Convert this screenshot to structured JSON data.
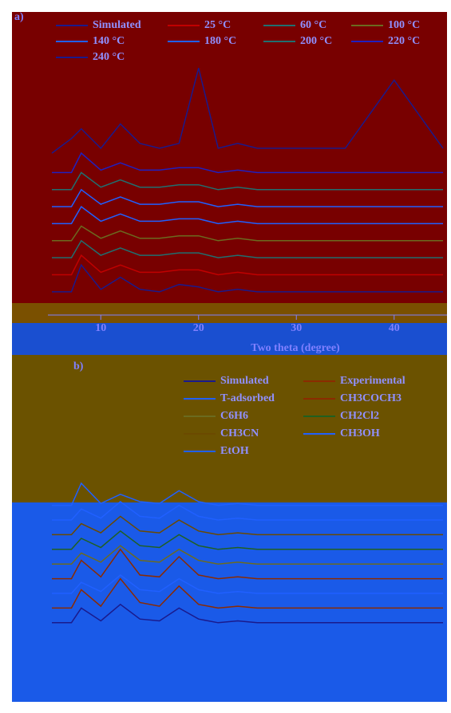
{
  "chart_data": [
    {
      "type": "line",
      "panel_label": "a)",
      "xlabel": "Two theta (degree)",
      "xlim": [
        5,
        45
      ],
      "xticks": [
        10,
        20,
        30,
        40
      ],
      "ylim": [
        0,
        100
      ],
      "x": [
        5,
        7,
        8,
        10,
        12,
        14,
        16,
        18,
        20,
        22,
        24,
        26,
        28,
        30,
        35,
        40,
        45
      ],
      "series": [
        {
          "name": "Simulated",
          "color": "#1a1a8c",
          "values": [
            3,
            3,
            14,
            4,
            9,
            4,
            3,
            6,
            5,
            3,
            4,
            3,
            3,
            3,
            3,
            3,
            3
          ]
        },
        {
          "name": "25 °C",
          "color": "#c00000",
          "values": [
            10,
            10,
            18,
            11,
            14,
            11,
            11,
            12,
            12,
            10,
            11,
            10,
            10,
            10,
            10,
            10,
            10
          ]
        },
        {
          "name": "60 °C",
          "color": "#207070",
          "values": [
            17,
            17,
            24,
            18,
            21,
            18,
            18,
            19,
            19,
            17,
            18,
            17,
            17,
            17,
            17,
            17,
            17
          ]
        },
        {
          "name": "100 °C",
          "color": "#6b6b20",
          "values": [
            24,
            24,
            30,
            25,
            28,
            25,
            25,
            26,
            26,
            24,
            25,
            24,
            24,
            24,
            24,
            24,
            24
          ]
        },
        {
          "name": "140 °C",
          "color": "#2060ff",
          "values": [
            31,
            31,
            38,
            32,
            35,
            32,
            32,
            33,
            33,
            31,
            32,
            31,
            31,
            31,
            31,
            31,
            31
          ]
        },
        {
          "name": "180 °C",
          "color": "#2060ff",
          "values": [
            38,
            38,
            45,
            39,
            42,
            39,
            39,
            40,
            40,
            38,
            39,
            38,
            38,
            38,
            38,
            38,
            38
          ]
        },
        {
          "name": "200 °C",
          "color": "#207070",
          "values": [
            45,
            45,
            52,
            46,
            49,
            46,
            46,
            47,
            47,
            45,
            46,
            45,
            45,
            45,
            45,
            45,
            45
          ]
        },
        {
          "name": "220 °C",
          "color": "#2020c0",
          "values": [
            52,
            52,
            60,
            53,
            56,
            53,
            53,
            54,
            54,
            52,
            53,
            52,
            52,
            52,
            52,
            52,
            52
          ]
        },
        {
          "name": "240 °C",
          "color": "#1a1a8c",
          "values": [
            60,
            66,
            70,
            62,
            72,
            64,
            62,
            64,
            95,
            62,
            64,
            62,
            62,
            62,
            62,
            90,
            62
          ]
        }
      ]
    },
    {
      "type": "line",
      "panel_label": "b)",
      "xlim": [
        5,
        45
      ],
      "ylim": [
        0,
        100
      ],
      "x": [
        5,
        7,
        8,
        10,
        12,
        14,
        16,
        18,
        20,
        22,
        24,
        26,
        28,
        30,
        35,
        40,
        45
      ],
      "series": [
        {
          "name": "Simulated",
          "color": "#1a1a8c",
          "values": [
            4,
            4,
            12,
            5,
            14,
            6,
            5,
            12,
            6,
            4,
            5,
            4,
            4,
            4,
            4,
            4,
            4
          ]
        },
        {
          "name": "Experimental",
          "color": "#8b2b00",
          "values": [
            12,
            12,
            22,
            13,
            28,
            15,
            13,
            24,
            14,
            12,
            13,
            12,
            12,
            12,
            12,
            12,
            12
          ]
        },
        {
          "name": "T-adsorbed",
          "color": "#2060ff",
          "values": [
            20,
            20,
            26,
            21,
            30,
            22,
            21,
            28,
            22,
            20,
            21,
            20,
            20,
            20,
            20,
            20,
            20
          ]
        },
        {
          "name": "CH3COCH3",
          "color": "#8b2b00",
          "values": [
            28,
            28,
            38,
            29,
            44,
            30,
            29,
            40,
            30,
            28,
            29,
            28,
            28,
            28,
            28,
            28,
            28
          ]
        },
        {
          "name": "C6H6",
          "color": "#6b6b20",
          "values": [
            36,
            36,
            42,
            37,
            46,
            38,
            37,
            44,
            38,
            36,
            37,
            36,
            36,
            36,
            36,
            36,
            36
          ]
        },
        {
          "name": "CH2Cl2",
          "color": "#206020",
          "values": [
            44,
            44,
            50,
            45,
            54,
            46,
            45,
            52,
            46,
            44,
            45,
            44,
            44,
            44,
            44,
            44,
            44
          ]
        },
        {
          "name": "CH3CN",
          "color": "#6b4a00",
          "values": [
            52,
            52,
            58,
            53,
            62,
            54,
            53,
            60,
            54,
            52,
            53,
            52,
            52,
            52,
            52,
            52,
            52
          ]
        },
        {
          "name": "CH3OH",
          "color": "#2060ff",
          "values": [
            60,
            60,
            66,
            61,
            70,
            62,
            61,
            68,
            62,
            60,
            61,
            60,
            60,
            60,
            60,
            60,
            60
          ]
        },
        {
          "name": "EtOH",
          "color": "#2060ff",
          "values": [
            68,
            68,
            80,
            69,
            74,
            70,
            69,
            76,
            70,
            68,
            69,
            68,
            68,
            68,
            68,
            68,
            68
          ]
        }
      ]
    }
  ]
}
